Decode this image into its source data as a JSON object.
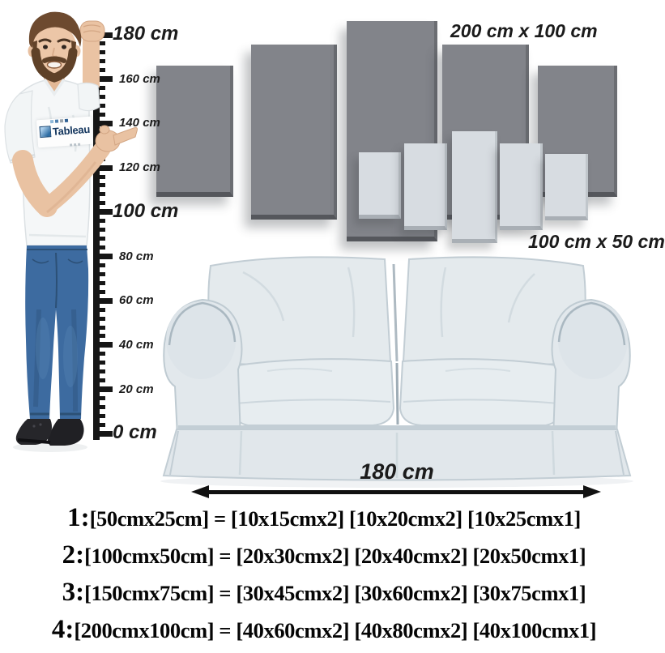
{
  "figure": {
    "person": {
      "description": "man pointing at height ruler",
      "shirt_logo_brand": "Tableau"
    },
    "ruler": {
      "unit": "cm",
      "minor_ticks_per_interval": 4,
      "marks": [
        {
          "label": "180 cm",
          "value": 180,
          "emphasis": true
        },
        {
          "label": "160 cm",
          "value": 160,
          "emphasis": false
        },
        {
          "label": "140 cm",
          "value": 140,
          "emphasis": false
        },
        {
          "label": "120 cm",
          "value": 120,
          "emphasis": false
        },
        {
          "label": "100 cm",
          "value": 100,
          "emphasis": true
        },
        {
          "label": "80 cm",
          "value": 80,
          "emphasis": false
        },
        {
          "label": "60 cm",
          "value": 60,
          "emphasis": false
        },
        {
          "label": "40 cm",
          "value": 40,
          "emphasis": false
        },
        {
          "label": "20 cm",
          "value": 20,
          "emphasis": false
        },
        {
          "label": "0 cm",
          "value": 0,
          "emphasis": true
        }
      ]
    },
    "canvas_sets": [
      {
        "id": "large",
        "label": "200 cm x 100 cm",
        "panels": 5,
        "color": "#82848a"
      },
      {
        "id": "small",
        "label": "100 cm x 50 cm",
        "panels": 5,
        "color": "#d7dce1"
      }
    ],
    "sofa": {
      "width_label": "180 cm"
    }
  },
  "size_options": [
    {
      "prefix": "1:",
      "body": "[50cmx25cm] = [10x15cmx2] [10x20cmx2] [10x25cmx1]"
    },
    {
      "prefix": "2:",
      "body": "[100cmx50cm] = [20x30cmx2] [20x40cmx2] [20x50cmx1]"
    },
    {
      "prefix": "3:",
      "body": "[150cmx75cm] = [30x45cmx2] [30x60cmx2] [30x75cmx1]"
    },
    {
      "prefix": "4:",
      "body": "[200cmx100cm] = [40x60cmx2] [40x80cmx2] [40x100cmx1]"
    }
  ],
  "colors": {
    "panel_dark": "#82848a",
    "panel_light": "#d7dce1",
    "ink": "#161616"
  }
}
